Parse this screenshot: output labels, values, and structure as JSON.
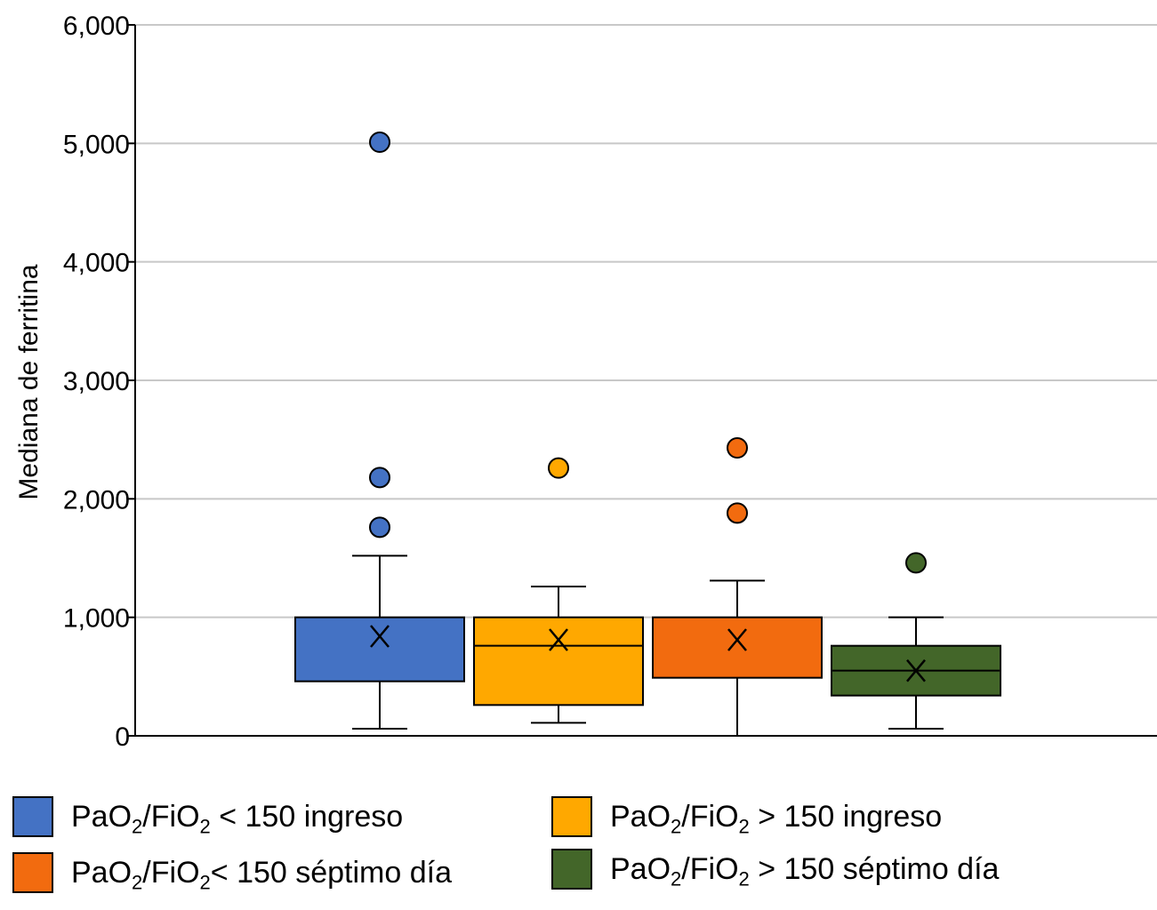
{
  "chart_data": {
    "type": "boxplot",
    "title": "",
    "xlabel": "",
    "ylabel": "Mediana de ferritina",
    "ylim": [
      0,
      6000
    ],
    "yticks": [
      0,
      1000,
      2000,
      3000,
      4000,
      5000,
      6000
    ],
    "ytick_labels": [
      "0",
      "1,000",
      "2,000",
      "3,000",
      "4,000",
      "5,000",
      "6,000"
    ],
    "grid": true,
    "series": [
      {
        "name": "PaO2/FiO2 < 150 ingreso",
        "color": "#4472c4",
        "min": 60,
        "q1": 460,
        "median": 1000,
        "q3": 1000,
        "max": 1520,
        "mean": 840,
        "outliers": [
          1760,
          2180,
          5010
        ]
      },
      {
        "name": "PaO2/FiO2 > 150 ingreso",
        "color": "#ffa800",
        "min": 110,
        "q1": 260,
        "median": 760,
        "q3": 1000,
        "max": 1260,
        "mean": 810,
        "outliers": [
          2260
        ]
      },
      {
        "name": "PaO2/FiO2 < 150 séptimo día",
        "color": "#f26b0f",
        "min": 0,
        "q1": 490,
        "median": 1000,
        "q3": 1000,
        "max": 1310,
        "mean": 810,
        "outliers": [
          1880,
          2430
        ]
      },
      {
        "name": "PaO2/FiO2 > 150 séptimo día",
        "color": "#436629",
        "min": 60,
        "q1": 340,
        "median": 550,
        "q3": 760,
        "max": 1000,
        "mean": 550,
        "outliers": [
          1460
        ]
      }
    ],
    "mean_marker": "X"
  },
  "legend": [
    {
      "pre": "PaO",
      "sub1": "2",
      "mid": "/FiO",
      "sub2": "2",
      "post": " < 150 ingreso",
      "color": "#4472c4"
    },
    {
      "pre": "PaO",
      "sub1": "2",
      "mid": "/FiO",
      "sub2": "2",
      "post": " > 150 ingreso",
      "color": "#ffa800"
    },
    {
      "pre": "PaO",
      "sub1": "2",
      "mid": "/FiO",
      "sub2": "2",
      "post": "< 150 séptimo día",
      "color": "#f26b0f"
    },
    {
      "pre": "PaO",
      "sub1": "2",
      "mid": "/FiO",
      "sub2": "2",
      "post": " > 150 séptimo día",
      "color": "#436629"
    }
  ]
}
